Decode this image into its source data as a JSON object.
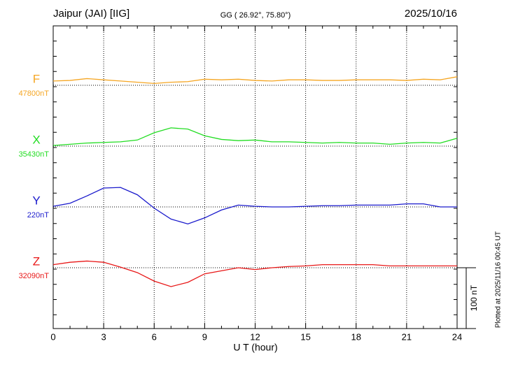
{
  "chart_data": {
    "type": "line",
    "title": "Jaipur (JAI)  [IIG]",
    "subtitle": "GG ( 26.92°,  75.80°)",
    "date": "2025/10/16",
    "x_label": "U T (hour)",
    "note": "Plotted at 2025/11/16 00:45 UT",
    "xlim": [
      0,
      24
    ],
    "xticks": [
      0,
      3,
      6,
      9,
      12,
      15,
      18,
      21,
      24
    ],
    "grid": true,
    "scale_bar": {
      "value": 100,
      "label": "100 nT"
    },
    "x": [
      0,
      1,
      2,
      3,
      4,
      5,
      6,
      7,
      8,
      9,
      10,
      11,
      12,
      13,
      14,
      15,
      16,
      17,
      18,
      19,
      20,
      21,
      22,
      23,
      24
    ],
    "series": [
      {
        "name": "F",
        "color": "#f5a623",
        "baseline": {
          "value": 47800,
          "label": "47800nT"
        },
        "values": [
          47807,
          47808,
          47811,
          47809,
          47807,
          47805,
          47803,
          47805,
          47806,
          47810,
          47809,
          47810,
          47808,
          47807,
          47809,
          47809,
          47808,
          47808,
          47809,
          47809,
          47809,
          47808,
          47810,
          47809,
          47814
        ]
      },
      {
        "name": "X",
        "color": "#22dd22",
        "baseline": {
          "value": 35430,
          "label": "35430nT"
        },
        "values": [
          35431,
          35433,
          35435,
          35436,
          35437,
          35440,
          35452,
          35460,
          35458,
          35447,
          35441,
          35439,
          35440,
          35437,
          35437,
          35436,
          35435,
          35436,
          35435,
          35435,
          35433,
          35435,
          35436,
          35435,
          35443
        ]
      },
      {
        "name": "Y",
        "color": "#1a1acc",
        "baseline": {
          "value": 220,
          "label": "220nT"
        },
        "values": [
          221,
          226,
          238,
          251,
          252,
          240,
          218,
          200,
          192,
          202,
          215,
          223,
          221,
          220,
          220,
          221,
          222,
          222,
          223,
          223,
          223,
          225,
          225,
          220,
          220
        ]
      },
      {
        "name": "Z",
        "color": "#e81818",
        "baseline": {
          "value": 32090,
          "label": "32090nT"
        },
        "values": [
          32095,
          32099,
          32101,
          32099,
          32091,
          32082,
          32068,
          32059,
          32066,
          32080,
          32085,
          32090,
          32087,
          32090,
          32092,
          32093,
          32095,
          32095,
          32095,
          32095,
          32093,
          32093,
          32093,
          32093,
          32093
        ]
      }
    ]
  }
}
